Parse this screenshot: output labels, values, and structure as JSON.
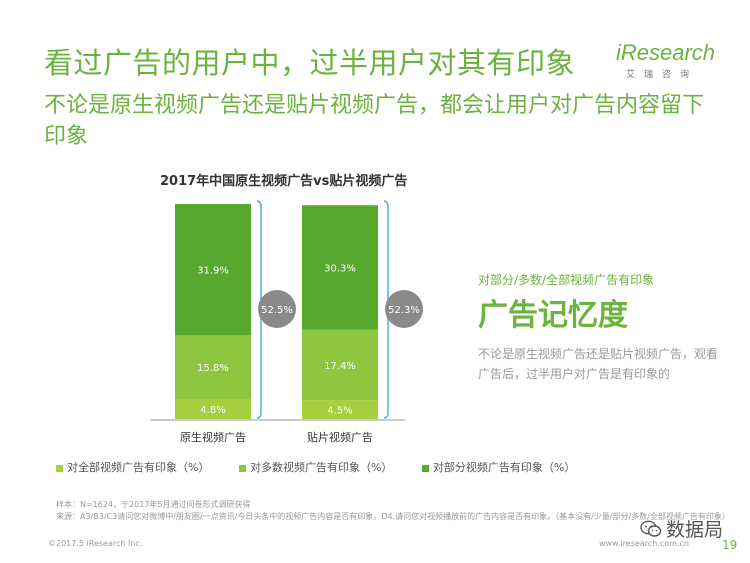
{
  "header": {
    "title": "看过广告的用户中，过半用户对其有印象",
    "subtitle": "不论是原生视频广告还是贴片视频广告，都会让用户对广告内容留下印象",
    "logo_text": "iResearch",
    "logo_cn": "艾瑞咨询"
  },
  "colors": {
    "dark_green": "#56a82f",
    "mid_green": "#8dc63f",
    "light_green": "#a5cf3c",
    "accent_green": "#6cb33e",
    "bracket_blue": "#4fb3d8",
    "circle_gray": "#8a8a8a"
  },
  "chart_data": {
    "type": "bar",
    "stacked": true,
    "title": "2017年中国原生视频广告vs贴片视频广告",
    "categories": [
      "原生视频广告",
      "贴片视频广告"
    ],
    "series": [
      {
        "name": "对全部视频广告有印象（%）",
        "values": [
          4.8,
          4.5
        ],
        "labels": [
          "4.8%",
          "4.5%"
        ]
      },
      {
        "name": "对多数视频广告有印象（%）",
        "values": [
          15.8,
          17.4
        ],
        "labels": [
          "15.8%",
          "17.4%"
        ]
      },
      {
        "name": "对部分视频广告有印象（%）",
        "values": [
          31.9,
          30.3
        ],
        "labels": [
          "31.9%",
          "30.3%"
        ]
      }
    ],
    "totals": [
      "52.5%",
      "52.3%"
    ],
    "ylim": [
      0,
      52.5
    ],
    "legend_position": "bottom"
  },
  "side_panel": {
    "caption": "对部分/多数/全部视频广告有印象",
    "headline": "广告记忆度",
    "description": "不论是原生视频广告还是贴片视频广告，观看广告后，过半用户对广告是有印象的"
  },
  "notes": {
    "sample": "样本：N=1624，于2017年5月通过问卷形式调研获得",
    "source": "来源：A3/B3/C3请问您对微博中/朋友圈/一点资讯/今日头条中的视频广告内容是否有印象。D4.请问您对视频播放前的广告内容是否有印象。（基本没有/少量/部分/多数/全部视频广告有印象）"
  },
  "footer": {
    "copyright": "©2017.5 iResearch Inc.",
    "url": "www.iresearch.com.cn",
    "wechat_label": "数据局",
    "page": "19"
  }
}
